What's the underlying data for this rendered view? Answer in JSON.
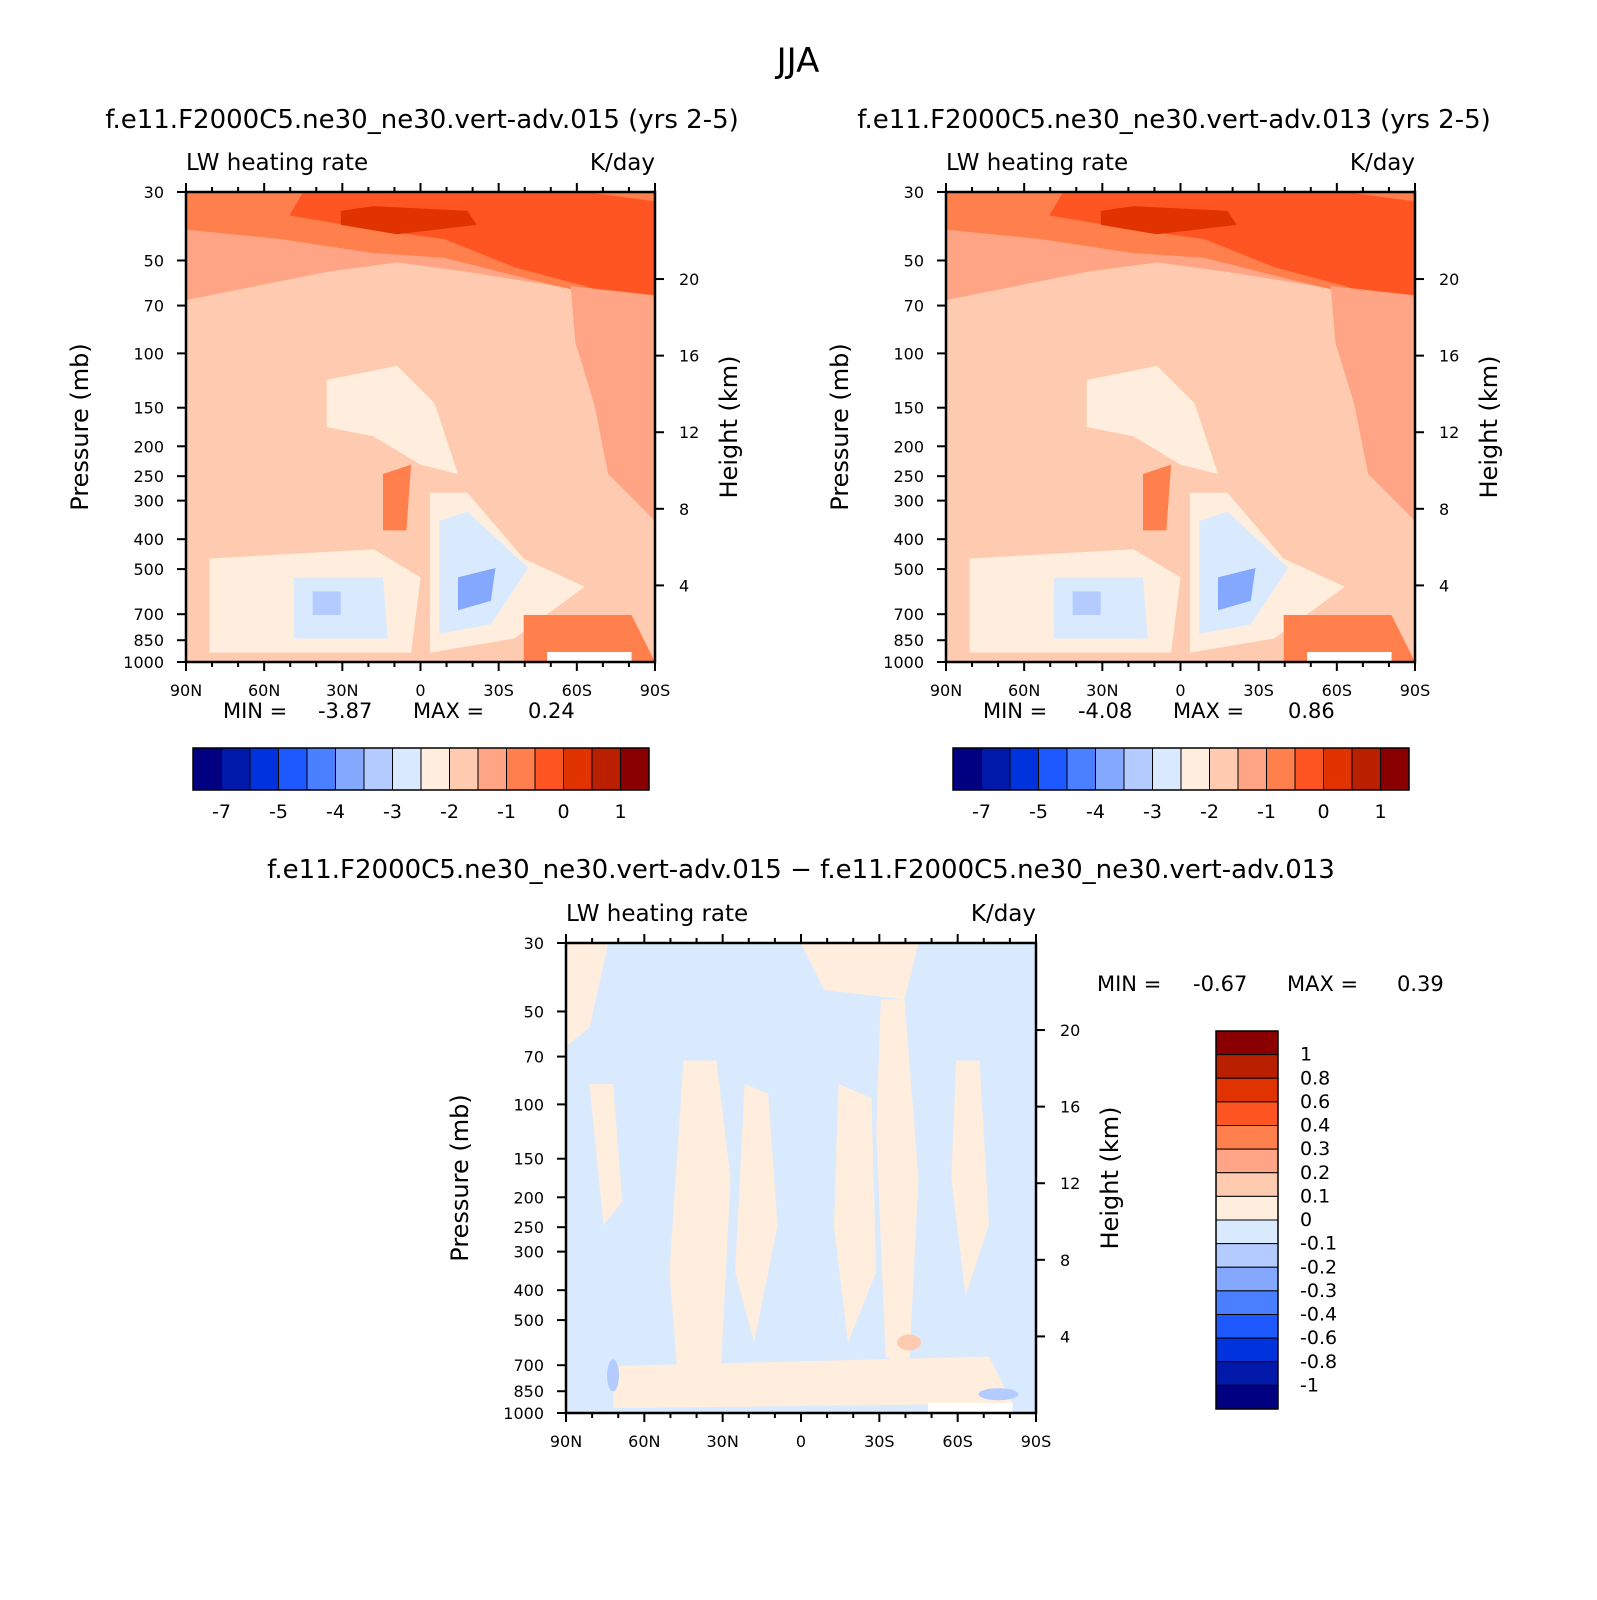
{
  "figure_title": "JJA",
  "chart_data": [
    {
      "type": "heatmap",
      "title": "f.e11.F2000C5.ne30_ne30.vert-adv.015 (yrs 2-5)",
      "variable": "LW heating rate",
      "units": "K/day",
      "xlabel": "",
      "ylabel": "Pressure (mb)",
      "ylabel_right": "Height (km)",
      "x_ticks": [
        "90N",
        "60N",
        "30N",
        "0",
        "30S",
        "60S",
        "90S"
      ],
      "y_ticks": [
        "30",
        "50",
        "70",
        "100",
        "150",
        "200",
        "250",
        "300",
        "400",
        "500",
        "700",
        "850",
        "1000"
      ],
      "y2_ticks": [
        "20",
        "16",
        "12",
        "8",
        "4"
      ],
      "xlim": [
        90,
        -90
      ],
      "ylim": [
        1000,
        30
      ],
      "y_scale": "log",
      "min_label": "MIN =",
      "max_label": "MAX =",
      "min": "-3.87",
      "max": "0.24",
      "colorbar": {
        "orientation": "horizontal",
        "labels": [
          "-7",
          "-5",
          "-4",
          "-3",
          "-2",
          "-1",
          "0",
          "1"
        ]
      }
    },
    {
      "type": "heatmap",
      "title": "f.e11.F2000C5.ne30_ne30.vert-adv.013 (yrs 2-5)",
      "variable": "LW heating rate",
      "units": "K/day",
      "xlabel": "",
      "ylabel": "Pressure (mb)",
      "ylabel_right": "Height (km)",
      "x_ticks": [
        "90N",
        "60N",
        "30N",
        "0",
        "30S",
        "60S",
        "90S"
      ],
      "y_ticks": [
        "30",
        "50",
        "70",
        "100",
        "150",
        "200",
        "250",
        "300",
        "400",
        "500",
        "700",
        "850",
        "1000"
      ],
      "y2_ticks": [
        "20",
        "16",
        "12",
        "8",
        "4"
      ],
      "xlim": [
        90,
        -90
      ],
      "ylim": [
        1000,
        30
      ],
      "y_scale": "log",
      "min_label": "MIN =",
      "max_label": "MAX =",
      "min": "-4.08",
      "max": "0.86",
      "colorbar": {
        "orientation": "horizontal",
        "labels": [
          "-7",
          "-5",
          "-4",
          "-3",
          "-2",
          "-1",
          "0",
          "1"
        ]
      }
    },
    {
      "type": "heatmap",
      "title": "f.e11.F2000C5.ne30_ne30.vert-adv.015 − f.e11.F2000C5.ne30_ne30.vert-adv.013",
      "variable": "LW heating rate",
      "units": "K/day",
      "xlabel": "",
      "ylabel": "Pressure (mb)",
      "ylabel_right": "Height (km)",
      "x_ticks": [
        "90N",
        "60N",
        "30N",
        "0",
        "30S",
        "60S",
        "90S"
      ],
      "y_ticks": [
        "30",
        "50",
        "70",
        "100",
        "150",
        "200",
        "250",
        "300",
        "400",
        "500",
        "700",
        "850",
        "1000"
      ],
      "y2_ticks": [
        "20",
        "16",
        "12",
        "8",
        "4"
      ],
      "xlim": [
        90,
        -90
      ],
      "ylim": [
        1000,
        30
      ],
      "y_scale": "log",
      "min_label": "MIN =",
      "max_label": "MAX =",
      "min": "-0.67",
      "max": "0.39",
      "colorbar": {
        "orientation": "vertical",
        "labels": [
          "1",
          "0.8",
          "0.6",
          "0.4",
          "0.3",
          "0.2",
          "0.1",
          "0",
          "-0.1",
          "-0.2",
          "-0.3",
          "-0.4",
          "-0.6",
          "-0.8",
          "-1"
        ]
      }
    }
  ],
  "palette": [
    "#000080",
    "#0019a8",
    "#0033dd",
    "#1e58ff",
    "#4a80ff",
    "#85a8ff",
    "#b4cbff",
    "#d9eaff",
    "#ffeedd",
    "#ffcbb0",
    "#ffa585",
    "#ff7f4d",
    "#ff5522",
    "#e03300",
    "#b82000",
    "#8a0000"
  ],
  "colors": {
    "diff_pos": "#ffeedd",
    "diff_neg": "#d9eaff"
  }
}
